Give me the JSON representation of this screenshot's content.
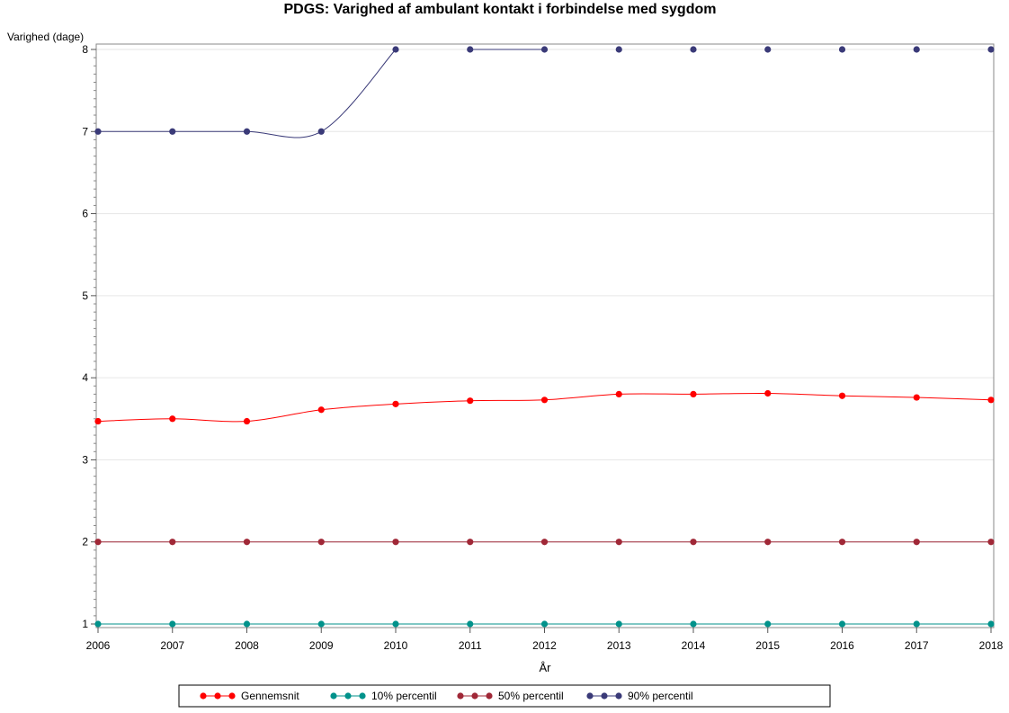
{
  "chart_data": {
    "type": "line",
    "title": "PDGS: Varighed af ambulant kontakt i forbindelse med sygdom",
    "xlabel": "År",
    "ylabel": "Varighed (dage)",
    "x": [
      2006,
      2007,
      2008,
      2009,
      2010,
      2011,
      2012,
      2013,
      2014,
      2015,
      2016,
      2017,
      2018
    ],
    "xlim": [
      2006,
      2018
    ],
    "ylim": [
      1,
      8
    ],
    "yticks": [
      1,
      2,
      3,
      4,
      5,
      6,
      7,
      8
    ],
    "grid": "horizontal",
    "legend_position": "bottom",
    "series": [
      {
        "name": "Gennemsnit",
        "color": "#ff0000",
        "values": [
          3.47,
          3.5,
          3.47,
          3.61,
          3.68,
          3.72,
          3.73,
          3.8,
          3.8,
          3.81,
          3.78,
          3.76,
          3.73
        ]
      },
      {
        "name": "10% percentil",
        "color": "#01928b",
        "values": [
          1,
          1,
          1,
          1,
          1,
          1,
          1,
          1,
          1,
          1,
          1,
          1,
          1
        ]
      },
      {
        "name": "50% percentil",
        "color": "#a02837",
        "values": [
          2,
          2,
          2,
          2,
          2,
          2,
          2,
          2,
          2,
          2,
          2,
          2,
          2
        ]
      },
      {
        "name": "90% percentil",
        "color": "#3a3a78",
        "values": [
          7,
          7,
          7,
          7,
          8,
          8,
          8,
          8,
          8,
          8,
          8,
          8,
          8
        ],
        "segments": [
          [
            0,
            4
          ],
          [
            5,
            6
          ]
        ]
      }
    ]
  }
}
